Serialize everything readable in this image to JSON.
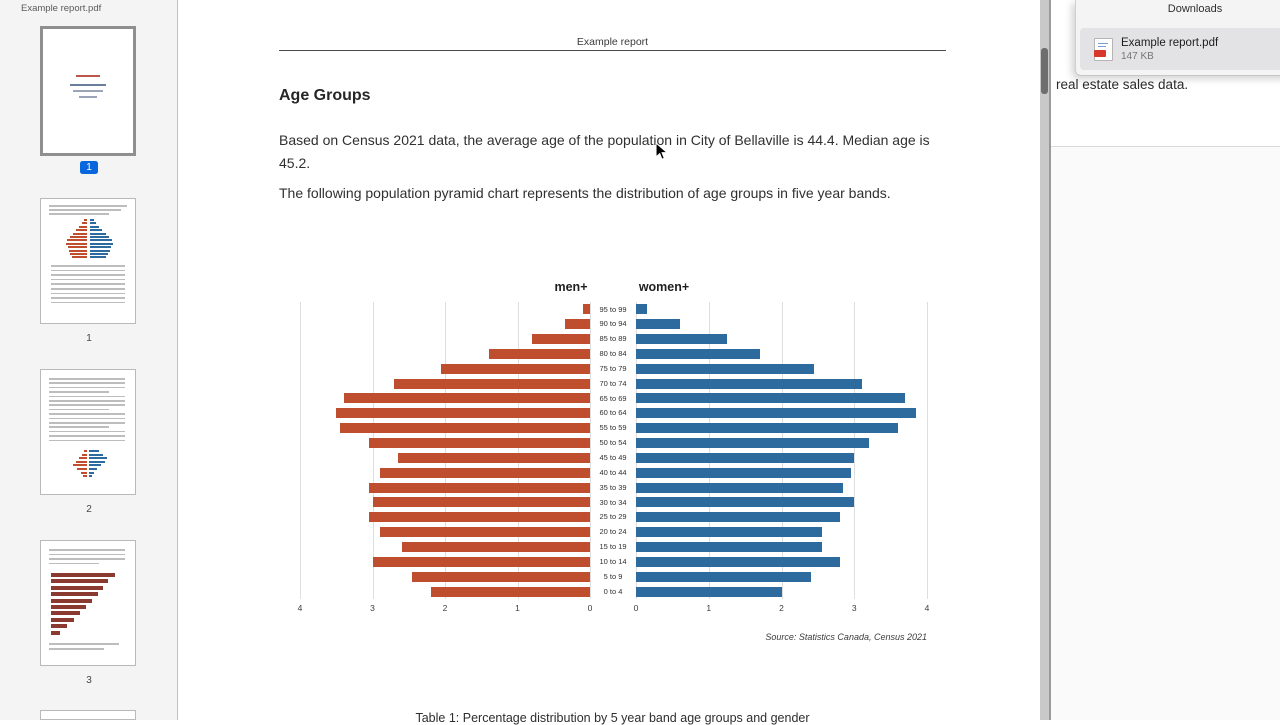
{
  "colors": {
    "men_bar": "#bf4e2e",
    "women_bar": "#2d6b9f",
    "selected_page_badge": "#0a66dd"
  },
  "sidebar": {
    "title": "Example report.pdf",
    "thumbnails": [
      {
        "label": "1",
        "selected": true
      },
      {
        "label": "1",
        "selected": false
      },
      {
        "label": "2",
        "selected": false
      },
      {
        "label": "3",
        "selected": false
      }
    ]
  },
  "document": {
    "running_header": "Example report",
    "heading": "Age Groups",
    "paragraph1": "Based on Census 2021 data, the average age of the population in City of Bellaville is 44.4. Median age is 45.2.",
    "paragraph2": "The following population pyramid chart represents the distribution of age groups in five year bands.",
    "table_caption": "Table 1: Percentage distribution by 5 year band age groups and gender"
  },
  "chart_data": {
    "type": "bar",
    "subtype": "population-pyramid",
    "categories": [
      "95 to 99",
      "90 to 94",
      "85 to 89",
      "80 to 84",
      "75 to 79",
      "70 to 74",
      "65 to 69",
      "60 to 64",
      "55 to 59",
      "50 to 54",
      "45 to 49",
      "40 to 44",
      "35 to 39",
      "30 to 34",
      "25 to 29",
      "20 to 24",
      "15 to 19",
      "10 to 14",
      "5 to 9",
      "0 to 4"
    ],
    "series": [
      {
        "name": "men+",
        "color": "#bf4e2e",
        "values": [
          0.1,
          0.35,
          0.8,
          1.4,
          2.05,
          2.7,
          3.4,
          3.5,
          3.45,
          3.05,
          2.65,
          2.9,
          3.05,
          3.0,
          3.05,
          2.9,
          2.6,
          3.0,
          2.45,
          2.2
        ]
      },
      {
        "name": "women+",
        "color": "#2d6b9f",
        "values": [
          0.15,
          0.6,
          1.25,
          1.7,
          2.45,
          3.1,
          3.7,
          3.85,
          3.6,
          3.2,
          3.0,
          2.95,
          2.85,
          3.0,
          2.8,
          2.55,
          2.55,
          2.8,
          2.4,
          2.0
        ]
      }
    ],
    "x_ticks_left": [
      4,
      3,
      2,
      1,
      0
    ],
    "x_ticks_right": [
      0,
      1,
      2,
      3,
      4
    ],
    "xlim": [
      0,
      4
    ],
    "grid": true,
    "legend_position": "top-center",
    "source_note": "Source: Statistics Canada, Census 2021"
  },
  "downloads_panel": {
    "title": "Downloads",
    "items": [
      {
        "filename": "Example report.pdf",
        "size": "147 KB",
        "icon": "pdf-file-icon"
      }
    ]
  },
  "background_page": {
    "visible_text": "real estate sales data."
  }
}
